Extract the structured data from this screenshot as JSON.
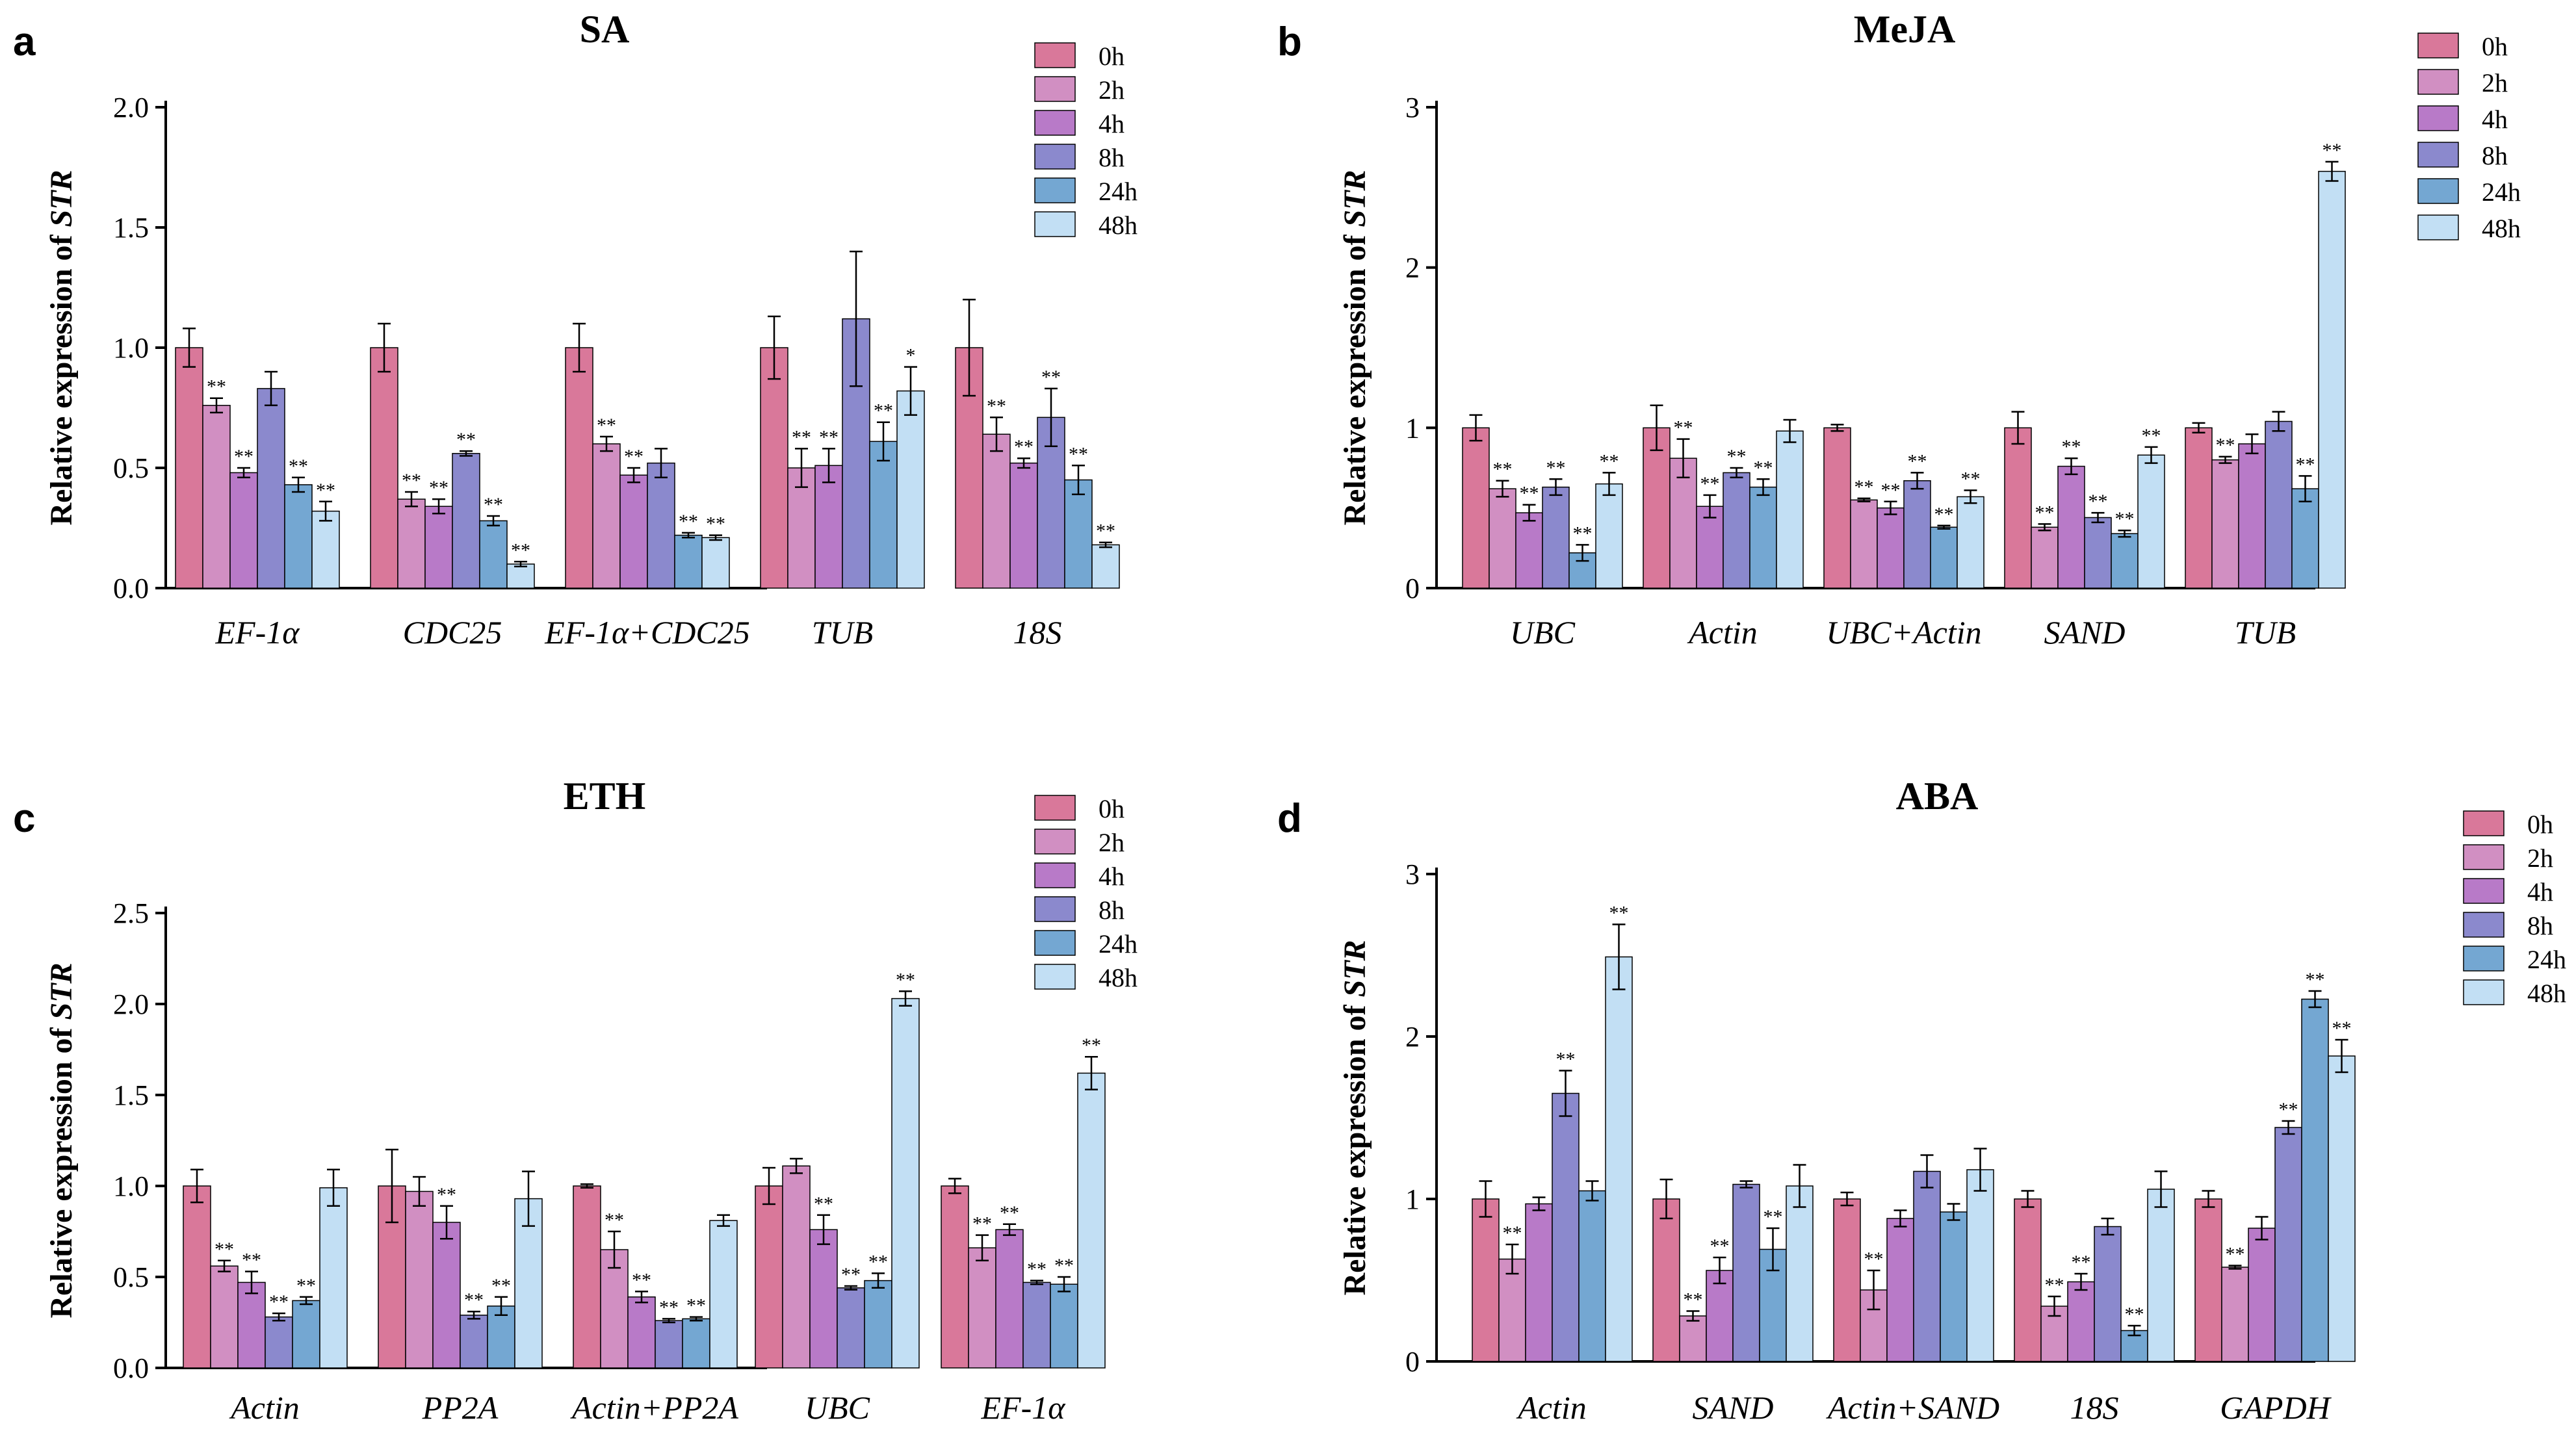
{
  "colors": {
    "0h": "#d9789a",
    "2h": "#d18fc2",
    "4h": "#b87ac8",
    "8h": "#8b89cd",
    "24h": "#74a7d2",
    "48h": "#c2dff4"
  },
  "chart_data": [
    {
      "type": "bar",
      "panel": "a",
      "title": "SA",
      "ylabel_prefix": "Relative expression of ",
      "ylabel_italic": "STR",
      "ylim": [
        0,
        2.0
      ],
      "yticks": [
        "0.0",
        "0.5",
        "1.0",
        "1.5",
        "2.0"
      ],
      "ytick_values": [
        0,
        0.5,
        1.0,
        1.5,
        2.0
      ],
      "legend": [
        "0h",
        "2h",
        "4h",
        "8h",
        "24h",
        "48h"
      ],
      "categories": [
        "EF-1α",
        "CDC25",
        "EF-1α+CDC25",
        "TUB",
        "18S"
      ],
      "series": [
        {
          "name": "0h",
          "values": [
            1.0,
            1.0,
            1.0,
            1.0,
            1.0
          ],
          "errors": [
            0.08,
            0.1,
            0.1,
            0.13,
            0.2
          ],
          "sig": [
            "",
            "",
            "",
            "",
            ""
          ]
        },
        {
          "name": "2h",
          "values": [
            0.76,
            0.37,
            0.6,
            0.5,
            0.64
          ],
          "errors": [
            0.03,
            0.03,
            0.03,
            0.08,
            0.07
          ],
          "sig": [
            "**",
            "**",
            "**",
            "**",
            "**"
          ]
        },
        {
          "name": "4h",
          "values": [
            0.48,
            0.34,
            0.47,
            0.51,
            0.52
          ],
          "errors": [
            0.02,
            0.03,
            0.03,
            0.07,
            0.02
          ],
          "sig": [
            "**",
            "**",
            "**",
            "**",
            "**"
          ]
        },
        {
          "name": "8h",
          "values": [
            0.83,
            0.56,
            0.52,
            1.12,
            0.71
          ],
          "errors": [
            0.07,
            0.01,
            0.06,
            0.28,
            0.12
          ],
          "sig": [
            "",
            "**",
            "",
            "",
            "**"
          ]
        },
        {
          "name": "24h",
          "values": [
            0.43,
            0.28,
            0.22,
            0.61,
            0.45
          ],
          "errors": [
            0.03,
            0.02,
            0.01,
            0.08,
            0.06
          ],
          "sig": [
            "**",
            "**",
            "**",
            "**",
            "**"
          ]
        },
        {
          "name": "48h",
          "values": [
            0.32,
            0.1,
            0.21,
            0.82,
            0.18
          ],
          "errors": [
            0.04,
            0.01,
            0.01,
            0.1,
            0.01
          ],
          "sig": [
            "**",
            "**",
            "**",
            "*",
            "**"
          ]
        }
      ]
    },
    {
      "type": "bar",
      "panel": "b",
      "title": "MeJA",
      "ylabel_prefix": "Relative expression of ",
      "ylabel_italic": "STR",
      "ylim": [
        0,
        3
      ],
      "yticks": [
        "0",
        "1",
        "2",
        "3"
      ],
      "ytick_values": [
        0,
        1,
        2,
        3
      ],
      "legend": [
        "0h",
        "2h",
        "4h",
        "8h",
        "24h",
        "48h"
      ],
      "categories": [
        "UBC",
        "Actin",
        "UBC+Actin",
        "SAND",
        "TUB"
      ],
      "series": [
        {
          "name": "0h",
          "values": [
            1.0,
            1.0,
            1.0,
            1.0,
            1.0
          ],
          "errors": [
            0.08,
            0.14,
            0.02,
            0.1,
            0.03
          ],
          "sig": [
            "",
            "",
            "",
            "",
            ""
          ]
        },
        {
          "name": "2h",
          "values": [
            0.62,
            0.81,
            0.55,
            0.38,
            0.8
          ],
          "errors": [
            0.05,
            0.12,
            0.01,
            0.02,
            0.02
          ],
          "sig": [
            "**",
            "**",
            "**",
            "**",
            "**"
          ]
        },
        {
          "name": "4h",
          "values": [
            0.47,
            0.51,
            0.5,
            0.76,
            0.9
          ],
          "errors": [
            0.05,
            0.07,
            0.04,
            0.05,
            0.06
          ],
          "sig": [
            "**",
            "**",
            "**",
            "**",
            ""
          ]
        },
        {
          "name": "8h",
          "values": [
            0.63,
            0.72,
            0.67,
            0.44,
            1.04
          ],
          "errors": [
            0.05,
            0.03,
            0.05,
            0.03,
            0.06
          ],
          "sig": [
            "**",
            "**",
            "**",
            "**",
            ""
          ]
        },
        {
          "name": "24h",
          "values": [
            0.22,
            0.63,
            0.38,
            0.34,
            0.62
          ],
          "errors": [
            0.05,
            0.05,
            0.01,
            0.02,
            0.08
          ],
          "sig": [
            "**",
            "**",
            "**",
            "**",
            "**"
          ]
        },
        {
          "name": "48h",
          "values": [
            0.65,
            0.98,
            0.57,
            0.83,
            2.6
          ],
          "errors": [
            0.07,
            0.07,
            0.04,
            0.05,
            0.06
          ],
          "sig": [
            "**",
            "",
            "**",
            "**",
            "**"
          ]
        }
      ]
    },
    {
      "type": "bar",
      "panel": "c",
      "title": "ETH",
      "ylabel_prefix": "Relative expression of ",
      "ylabel_italic": "STR",
      "ylim": [
        0,
        2.5
      ],
      "yticks": [
        "0.0",
        "0.5",
        "1.0",
        "1.5",
        "2.0",
        "2.5"
      ],
      "ytick_values": [
        0,
        0.5,
        1.0,
        1.5,
        2.0,
        2.5
      ],
      "legend": [
        "0h",
        "2h",
        "4h",
        "8h",
        "24h",
        "48h"
      ],
      "categories": [
        "Actin",
        "PP2A",
        "Actin+PP2A",
        "UBC",
        "EF-1α"
      ],
      "series": [
        {
          "name": "0h",
          "values": [
            1.0,
            1.0,
            1.0,
            1.0,
            1.0
          ],
          "errors": [
            0.09,
            0.2,
            0.01,
            0.1,
            0.04
          ],
          "sig": [
            "",
            "",
            "",
            "",
            ""
          ]
        },
        {
          "name": "2h",
          "values": [
            0.56,
            0.97,
            0.65,
            1.11,
            0.66
          ],
          "errors": [
            0.03,
            0.08,
            0.1,
            0.04,
            0.07
          ],
          "sig": [
            "**",
            "",
            "**",
            "",
            "**"
          ]
        },
        {
          "name": "4h",
          "values": [
            0.47,
            0.8,
            0.39,
            0.76,
            0.76
          ],
          "errors": [
            0.06,
            0.09,
            0.03,
            0.08,
            0.03
          ],
          "sig": [
            "**",
            "**",
            "**",
            "**",
            "**"
          ]
        },
        {
          "name": "8h",
          "values": [
            0.28,
            0.29,
            0.26,
            0.44,
            0.47
          ],
          "errors": [
            0.02,
            0.02,
            0.01,
            0.01,
            0.01
          ],
          "sig": [
            "**",
            "**",
            "**",
            "**",
            "**"
          ]
        },
        {
          "name": "24h",
          "values": [
            0.37,
            0.34,
            0.27,
            0.48,
            0.46
          ],
          "errors": [
            0.02,
            0.05,
            0.01,
            0.04,
            0.04
          ],
          "sig": [
            "**",
            "**",
            "**",
            "**",
            "**"
          ]
        },
        {
          "name": "48h",
          "values": [
            0.99,
            0.93,
            0.81,
            2.03,
            1.62
          ],
          "errors": [
            0.1,
            0.15,
            0.03,
            0.04,
            0.09
          ],
          "sig": [
            "",
            "",
            "",
            "**",
            "**"
          ]
        }
      ]
    },
    {
      "type": "bar",
      "panel": "d",
      "title": "ABA",
      "ylabel_prefix": "Relative expression of ",
      "ylabel_italic": "STR",
      "ylim": [
        0,
        3
      ],
      "yticks": [
        "0",
        "1",
        "2",
        "3"
      ],
      "ytick_values": [
        0,
        1,
        2,
        3
      ],
      "legend": [
        "0h",
        "2h",
        "4h",
        "8h",
        "24h",
        "48h"
      ],
      "categories": [
        "Actin",
        "SAND",
        "Actin+SAND",
        "18S",
        "GAPDH"
      ],
      "series": [
        {
          "name": "0h",
          "values": [
            1.0,
            1.0,
            1.0,
            1.0,
            1.0
          ],
          "errors": [
            0.11,
            0.12,
            0.04,
            0.05,
            0.05
          ],
          "sig": [
            "",
            "",
            "",
            "",
            ""
          ]
        },
        {
          "name": "2h",
          "values": [
            0.63,
            0.28,
            0.44,
            0.34,
            0.58
          ],
          "errors": [
            0.09,
            0.03,
            0.12,
            0.06,
            0.01
          ],
          "sig": [
            "**",
            "**",
            "**",
            "**",
            "**"
          ]
        },
        {
          "name": "4h",
          "values": [
            0.97,
            0.56,
            0.88,
            0.49,
            0.82
          ],
          "errors": [
            0.04,
            0.08,
            0.05,
            0.05,
            0.07
          ],
          "sig": [
            "",
            "**",
            "",
            "**",
            ""
          ]
        },
        {
          "name": "8h",
          "values": [
            1.65,
            1.09,
            1.17,
            0.83,
            1.44
          ],
          "errors": [
            0.14,
            0.02,
            0.1,
            0.05,
            0.04
          ],
          "sig": [
            "**",
            "",
            "",
            "",
            "**"
          ]
        },
        {
          "name": "24h",
          "values": [
            1.05,
            0.69,
            0.92,
            0.19,
            2.23
          ],
          "errors": [
            0.06,
            0.13,
            0.05,
            0.03,
            0.05
          ],
          "sig": [
            "",
            "**",
            "",
            "**",
            "**"
          ]
        },
        {
          "name": "48h",
          "values": [
            2.49,
            1.08,
            1.18,
            1.06,
            1.88
          ],
          "errors": [
            0.2,
            0.13,
            0.13,
            0.11,
            0.1
          ],
          "sig": [
            "**",
            "",
            "",
            "",
            "**"
          ]
        }
      ]
    }
  ]
}
